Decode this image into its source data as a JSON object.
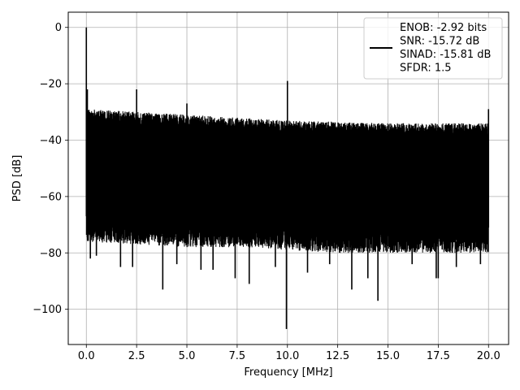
{
  "chart_data": {
    "type": "line",
    "title": "",
    "xlabel": "Frequency [MHz]",
    "ylabel": "PSD [dB]",
    "xlim": [
      -0.9,
      21.0
    ],
    "ylim": [
      -112.5,
      5.4
    ],
    "grid": true,
    "x_ticks": [
      0.0,
      2.5,
      5.0,
      7.5,
      10.0,
      12.5,
      15.0,
      17.5,
      20.0
    ],
    "x_tick_labels": [
      "0.0",
      "2.5",
      "5.0",
      "7.5",
      "10.0",
      "12.5",
      "15.0",
      "17.5",
      "20.0"
    ],
    "y_ticks": [
      0,
      -20,
      -40,
      -60,
      -80,
      -100
    ],
    "y_tick_labels": [
      "0",
      "−20",
      "−40",
      "−60",
      "−80",
      "−100"
    ],
    "legend_position": "top-right",
    "legend": [
      "ENOB: -2.92 bits",
      "SNR: -15.72 dB",
      "SINAD: -15.81 dB",
      "SFDR: 1.5"
    ],
    "series": [
      {
        "color": "#000000",
        "noise_floor": {
          "x": [
            0.0,
            2.5,
            5.0,
            7.5,
            10.0,
            12.5,
            15.0,
            17.5,
            20.0
          ],
          "upper": [
            -29,
            -30,
            -31,
            -32,
            -33,
            -33.5,
            -34,
            -34,
            -34
          ],
          "lower": [
            -72,
            -73,
            -74,
            -74,
            -75,
            -76,
            -76,
            -76,
            -76
          ]
        },
        "peaks": [
          {
            "x": 0.0,
            "y": 0
          },
          {
            "x": 0.05,
            "y": -22
          },
          {
            "x": 2.5,
            "y": -22
          },
          {
            "x": 5.0,
            "y": -27
          },
          {
            "x": 10.0,
            "y": -19
          },
          {
            "x": 20.0,
            "y": -29
          }
        ],
        "dips": [
          {
            "x": 0.2,
            "y": -82
          },
          {
            "x": 0.5,
            "y": -81
          },
          {
            "x": 1.7,
            "y": -85
          },
          {
            "x": 2.3,
            "y": -85
          },
          {
            "x": 3.8,
            "y": -93
          },
          {
            "x": 4.5,
            "y": -84
          },
          {
            "x": 5.7,
            "y": -86
          },
          {
            "x": 6.3,
            "y": -86
          },
          {
            "x": 7.4,
            "y": -89
          },
          {
            "x": 8.1,
            "y": -91
          },
          {
            "x": 9.4,
            "y": -85
          },
          {
            "x": 9.95,
            "y": -107
          },
          {
            "x": 11.0,
            "y": -87
          },
          {
            "x": 12.1,
            "y": -84
          },
          {
            "x": 13.2,
            "y": -93
          },
          {
            "x": 14.0,
            "y": -89
          },
          {
            "x": 14.5,
            "y": -97
          },
          {
            "x": 16.2,
            "y": -84
          },
          {
            "x": 17.4,
            "y": -89
          },
          {
            "x": 17.5,
            "y": -89
          },
          {
            "x": 18.4,
            "y": -85
          },
          {
            "x": 19.6,
            "y": -84
          }
        ]
      }
    ]
  }
}
